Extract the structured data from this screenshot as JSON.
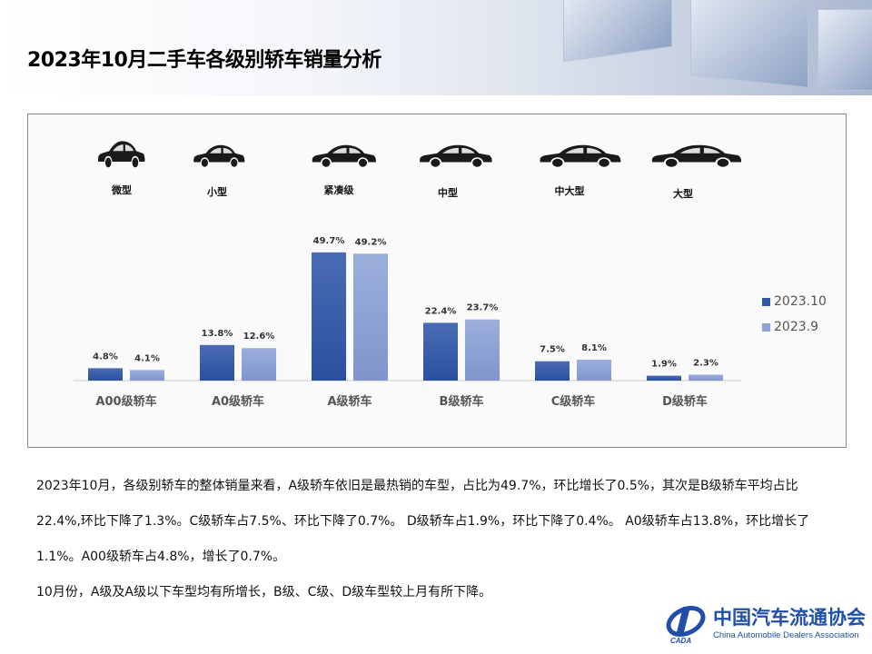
{
  "header": {
    "title": "2023年10月二手车各级别轿车销量分析"
  },
  "segments": [
    {
      "icon": "micro-car-icon",
      "label": "微型"
    },
    {
      "icon": "hatchback-car-icon",
      "label": "小型"
    },
    {
      "icon": "compact-sedan-icon",
      "label": "紧凑级"
    },
    {
      "icon": "midsize-sedan-icon",
      "label": "中型"
    },
    {
      "icon": "large-midsize-sedan-icon",
      "label": "中大型"
    },
    {
      "icon": "fullsize-sedan-icon",
      "label": "大型"
    }
  ],
  "chart_data": {
    "type": "bar",
    "categories": [
      "A00级轿车",
      "A0级轿车",
      "A级轿车",
      "B级轿车",
      "C级轿车",
      "D级轿车"
    ],
    "series": [
      {
        "name": "2023.10",
        "values": [
          4.8,
          13.8,
          49.7,
          22.4,
          7.5,
          1.9
        ],
        "labels": [
          "4.8%",
          "13.8%",
          "49.7%",
          "22.4%",
          "7.5%",
          "1.9%"
        ],
        "color": "#3358a8"
      },
      {
        "name": "2023.9",
        "values": [
          4.1,
          12.6,
          49.2,
          23.7,
          8.1,
          2.3
        ],
        "labels": [
          "4.1%",
          "12.6%",
          "49.2%",
          "23.7%",
          "8.1%",
          "2.3%"
        ],
        "color": "#8fa3d6"
      }
    ],
    "legend": "right",
    "grid": false,
    "ylim": [
      0,
      55
    ]
  },
  "analysis": {
    "paragraph1": "2023年10月，各级别轿车的整体销量来看，A级轿车依旧是最热销的车型，占比为49.7%，环比增长了0.5%，其次是B级轿车平均占比22.4%,环比下降了1.3%。C级轿车占7.5%、环比下降了0.7%。 D级轿车占1.9%，环比下降了0.4%。 A0级轿车占13.8%，环比增长了1.1%。A00级轿车占4.8%，增长了0.7%。",
    "paragraph2": "10月份，A级及A级以下车型均有所增长，B级、C级、D级车型较上月有所下降。"
  },
  "logo": {
    "name_cn": "中国汽车流通协会",
    "name_en": "China Automobile Dealers Association",
    "mark": "CADA"
  }
}
